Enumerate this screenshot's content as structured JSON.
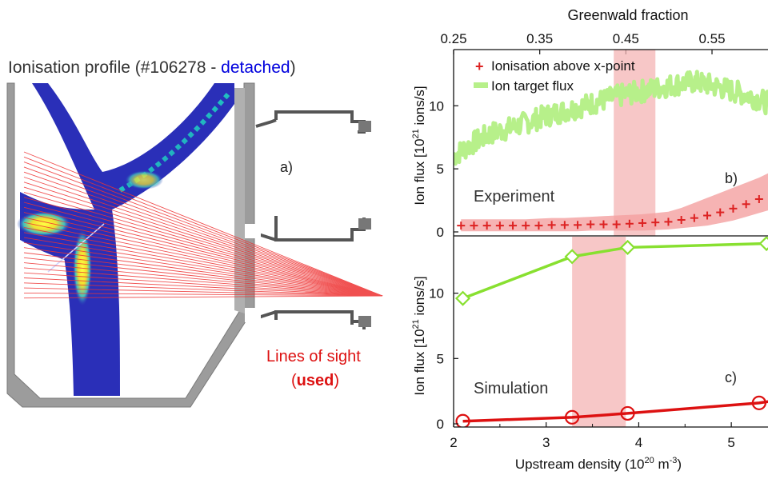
{
  "panel_a": {
    "title_prefix": "Ionisation profile (#106278 - ",
    "title_detached": "detached",
    "title_suffix": ")",
    "label": "a)",
    "los_line1": "Lines of sight",
    "los_open": "(",
    "los_used": "used",
    "los_close": ")",
    "colors": {
      "title": "#333333",
      "detached": "#0000dd",
      "los": "#dd1111",
      "plasma": "#2a2fb8",
      "vessel": "#9a9a9a"
    }
  },
  "chart_data": [
    {
      "type": "line",
      "panel_label": "b)",
      "annotation": "Experiment",
      "top_axis": {
        "label": "Greenwald fraction",
        "ticks": [
          "0.25",
          "0.35",
          "0.45",
          "0.55"
        ],
        "values": [
          0.25,
          0.35,
          0.45,
          0.55
        ],
        "range": [
          0.25,
          0.615
        ]
      },
      "ylabel": "Ion flux [10^21 ions/s]",
      "ylabel_parts": {
        "pre": "Ion flux [10",
        "exp": "21",
        "post": " ions/s]"
      },
      "ylim": [
        0,
        14.2
      ],
      "yticks": [
        "0",
        "5",
        "10"
      ],
      "xlim": [
        2,
        5.5
      ],
      "shaded_region_x": [
        3.73,
        4.18
      ],
      "legend": {
        "placement": "top-left",
        "entries": [
          "Ionisation above x-point",
          "Ion target flux"
        ]
      },
      "series": [
        {
          "name": "Ionisation above x-point",
          "marker": "+",
          "color": "#dd2222",
          "band_color": "#f4a0a0",
          "x": [
            2.08,
            2.22,
            2.36,
            2.5,
            2.64,
            2.78,
            2.92,
            3.06,
            3.2,
            3.34,
            3.48,
            3.62,
            3.76,
            3.9,
            4.04,
            4.18,
            4.32,
            4.46,
            4.6,
            4.74,
            4.88,
            5.02,
            5.16,
            5.3,
            5.44
          ],
          "values": [
            0.5,
            0.5,
            0.5,
            0.5,
            0.5,
            0.5,
            0.5,
            0.55,
            0.55,
            0.55,
            0.6,
            0.6,
            0.6,
            0.65,
            0.7,
            0.75,
            0.8,
            0.95,
            1.1,
            1.3,
            1.55,
            1.85,
            2.2,
            2.6,
            3.0
          ],
          "band_upper": [
            1.0,
            1.0,
            1.0,
            1.0,
            1.0,
            1.0,
            1.05,
            1.1,
            1.1,
            1.15,
            1.2,
            1.25,
            1.3,
            1.35,
            1.4,
            1.5,
            1.6,
            1.9,
            2.3,
            2.7,
            3.1,
            3.5,
            3.9,
            4.3,
            4.8
          ],
          "band_lower": [
            0.05,
            0.05,
            0.05,
            0.05,
            0.05,
            0.05,
            0.05,
            0.05,
            0.05,
            0.05,
            0.1,
            0.1,
            0.1,
            0.1,
            0.1,
            0.15,
            0.2,
            0.3,
            0.4,
            0.5,
            0.7,
            0.9,
            1.2,
            1.5,
            1.8
          ]
        },
        {
          "name": "Ion target flux",
          "style": "noisy-band",
          "color": "#b7f08a",
          "x": [
            2.0,
            2.2,
            2.4,
            2.6,
            2.8,
            3.0,
            3.2,
            3.4,
            3.6,
            3.8,
            4.0,
            4.2,
            4.4,
            4.6,
            4.8,
            5.0,
            5.2,
            5.4,
            5.5
          ],
          "values": [
            6.0,
            7.0,
            7.8,
            8.2,
            8.7,
            9.2,
            9.6,
            10.0,
            10.4,
            10.8,
            11.1,
            11.4,
            11.7,
            11.9,
            11.6,
            11.2,
            10.8,
            10.2,
            9.5
          ]
        }
      ]
    },
    {
      "type": "line",
      "panel_label": "c)",
      "annotation": "Simulation",
      "xlabel": "Upstream density (10^20 m^-3)",
      "xlabel_parts": {
        "pre": "Upstream density (10",
        "exp1": "20",
        "mid": " m",
        "exp2": "-3",
        "post": ")"
      },
      "xlim": [
        2,
        5.5
      ],
      "xticks": [
        "2",
        "3",
        "4",
        "5"
      ],
      "ylabel": "Ion flux [10^21 ions/s]",
      "ylabel_parts": {
        "pre": "Ion flux [10",
        "exp": "21",
        "post": " ions/s]"
      },
      "ylim": [
        0,
        14.2
      ],
      "yticks": [
        "0",
        "5",
        "10"
      ],
      "shaded_region_x": [
        3.28,
        3.86
      ],
      "series": [
        {
          "marker": "diamond",
          "color": "#88e030",
          "x": [
            2.1,
            3.28,
            3.88,
            5.38
          ],
          "values": [
            9.6,
            12.8,
            13.5,
            13.8
          ]
        },
        {
          "marker": "circle",
          "color": "#dd1111",
          "x": [
            2.1,
            3.28,
            3.88,
            5.3,
            5.6
          ],
          "values": [
            0.2,
            0.5,
            0.8,
            1.6,
            1.9
          ]
        }
      ]
    }
  ]
}
